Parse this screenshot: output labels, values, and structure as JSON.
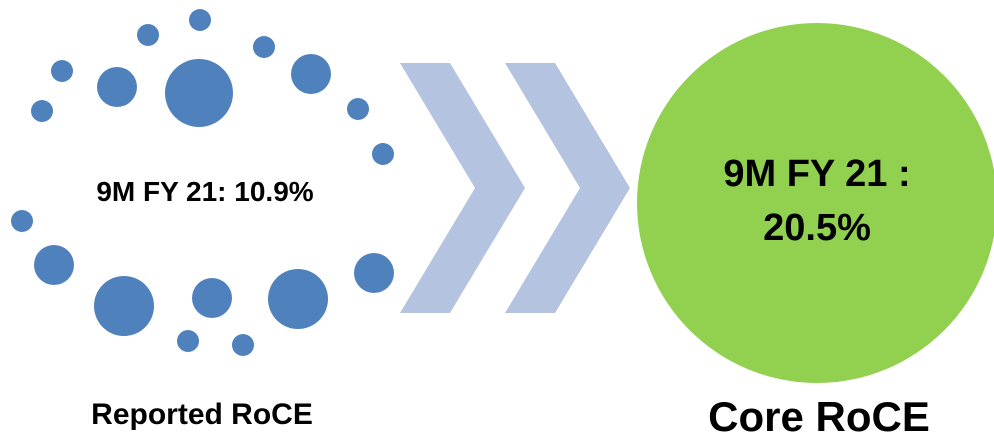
{
  "reported": {
    "value_text": "9M FY 21: 10.9%",
    "caption": "Reported RoCE",
    "color": "#4f81bd"
  },
  "core": {
    "value_line1": "9M FY 21 :",
    "value_line2": "20.5%",
    "caption": "Core RoCE",
    "color": "#92d050"
  },
  "arrow_color": "#b4c3e0"
}
